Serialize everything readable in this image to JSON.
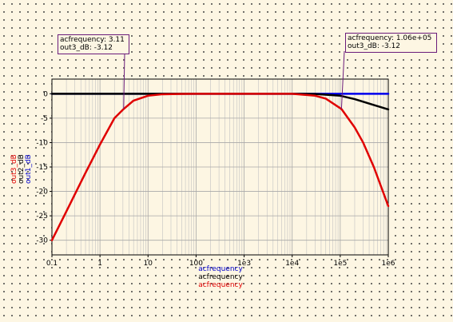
{
  "chart_data": {
    "type": "line",
    "x_scale": "log",
    "xlim": [
      0.1,
      1000000
    ],
    "ylim": [
      -33,
      3
    ],
    "grid": true,
    "x_ticks": [
      "0.1",
      "1",
      "10",
      "100",
      "1e3",
      "1e4",
      "1e5",
      "1e6"
    ],
    "y_ticks": [
      "0",
      "-5",
      "-10",
      "-15",
      "-20",
      "-25",
      "-30"
    ],
    "ylabels": [
      {
        "text": "out3_dB",
        "color": "#e00000"
      },
      {
        "text": "out2_dB",
        "color": "#000000"
      },
      {
        "text": "out1_dB",
        "color": "#0000cc"
      }
    ],
    "xlabels": [
      {
        "text": "acfrequency",
        "color": "#0000cc"
      },
      {
        "text": "acfrequency",
        "color": "#000000"
      },
      {
        "text": "acfrequency",
        "color": "#e00000"
      }
    ],
    "series": [
      {
        "name": "out1_dB",
        "color": "#0000ee",
        "x": [
          0.1,
          1,
          10,
          100,
          1000,
          10000,
          100000,
          1000000
        ],
        "y": [
          0,
          0,
          0,
          0,
          0,
          0,
          0,
          0
        ]
      },
      {
        "name": "out2_dB",
        "color": "#000000",
        "x": [
          0.1,
          1,
          10,
          100,
          1000,
          10000,
          30000,
          100000,
          200000,
          500000,
          1000000
        ],
        "y": [
          0,
          0,
          0,
          0,
          0,
          0,
          -0.04,
          -0.4,
          -1.1,
          -2.3,
          -3.2
        ]
      },
      {
        "name": "out3_dB",
        "color": "#e00000",
        "x": [
          0.1,
          0.2,
          0.3,
          0.5,
          1,
          2,
          3.11,
          5,
          10,
          20,
          50,
          100,
          1000,
          10000,
          30000,
          50000,
          106000,
          200000,
          300000,
          500000,
          1000000
        ],
        "y": [
          -30,
          -24.1,
          -20.6,
          -16.2,
          -10.4,
          -5.0,
          -3.12,
          -1.4,
          -0.4,
          -0.1,
          -0.02,
          0,
          0,
          0,
          -0.4,
          -1.0,
          -3.12,
          -6.9,
          -10.0,
          -15.0,
          -23.0
        ]
      }
    ],
    "markers": [
      {
        "freq": 3.11,
        "value": -3.12,
        "line1": "acfrequency: 3.11",
        "line2": "out3_dB: -3.12"
      },
      {
        "freq": 106000,
        "value": -3.12,
        "line1": "acfrequency: 1.06e+05",
        "line2": "out3_dB: -3.12"
      }
    ]
  }
}
